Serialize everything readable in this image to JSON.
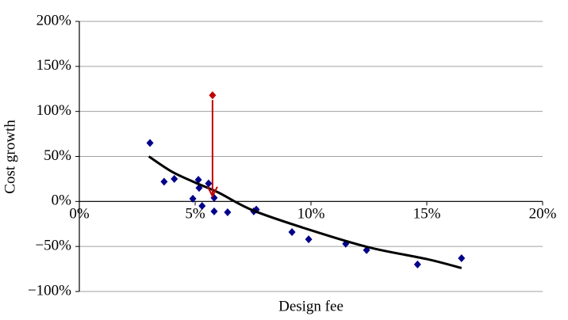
{
  "chart_data": {
    "type": "scatter",
    "x_label": "Design fee",
    "y_label": "Cost growth",
    "xlim": [
      0,
      20
    ],
    "xticks": [
      {
        "value": 0,
        "label": "0%"
      },
      {
        "value": 5,
        "label": "5%"
      },
      {
        "value": 10,
        "label": "10%"
      },
      {
        "value": 15,
        "label": "15%"
      },
      {
        "value": 20,
        "label": "20%"
      }
    ],
    "ylim": [
      -100,
      200
    ],
    "yticks": [
      {
        "value": -100,
        "label": "−100%"
      },
      {
        "value": -50,
        "label": "−50%"
      },
      {
        "value": 0,
        "label": "0%"
      },
      {
        "value": 50,
        "label": "50%"
      },
      {
        "value": 100,
        "label": "100%"
      },
      {
        "value": 150,
        "label": "150%"
      },
      {
        "value": 200,
        "label": "200%"
      }
    ],
    "grid": true,
    "series": [
      {
        "type": "scatter",
        "color": "#00008b",
        "x": [
          3.05,
          3.66,
          4.1,
          4.9,
          5.14,
          5.17,
          5.3,
          5.58,
          5.82,
          5.82,
          6.4,
          7.53,
          7.64,
          9.18,
          9.9,
          11.5,
          12.4,
          14.6,
          16.5
        ],
        "values": [
          65,
          22,
          25,
          3,
          24,
          15,
          -5,
          20,
          4,
          -11,
          -12,
          -11,
          -9,
          -34,
          -42,
          -47,
          -54,
          -70,
          -63
        ]
      },
      {
        "type": "scatter",
        "color": "#c00000",
        "x": [
          5.75
        ],
        "values": [
          118
        ]
      },
      {
        "type": "line",
        "color": "#000000",
        "x": [
          3,
          4,
          5,
          6,
          7.5,
          10,
          12.5,
          15,
          16.5
        ],
        "values": [
          50,
          33,
          21,
          10,
          -10,
          -32,
          -51,
          -64,
          -74
        ]
      }
    ]
  }
}
